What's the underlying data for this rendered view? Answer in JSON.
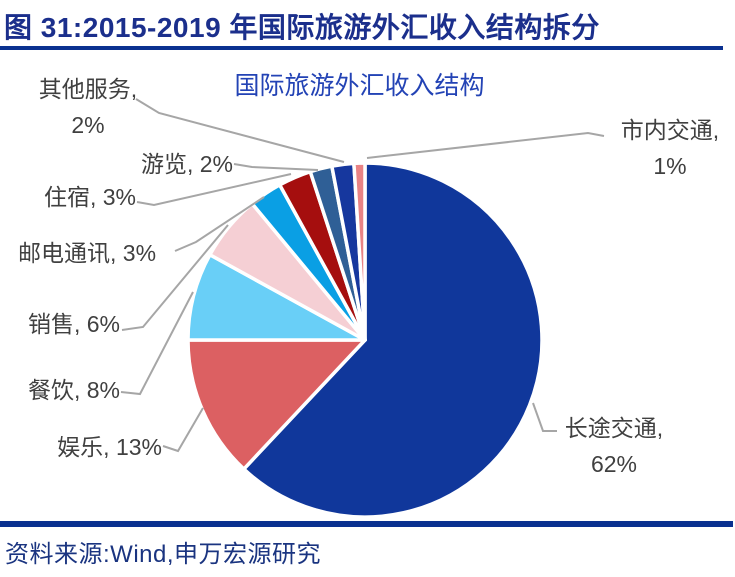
{
  "header": {
    "figure_title": "图 31:2015-2019 年国际旅游外汇收入结构拆分"
  },
  "chart_data": {
    "type": "pie",
    "title": "国际旅游外汇收入结构",
    "unit": "%",
    "direction": "clockwise",
    "start_angle_deg": 0,
    "legend_position": "none (data labels with leader lines)",
    "categories": [
      "长途交通",
      "娱乐",
      "餐饮",
      "销售",
      "邮电通讯",
      "住宿",
      "游览",
      "其他服务",
      "市内交通"
    ],
    "values": [
      62,
      13,
      8,
      6,
      3,
      3,
      2,
      2,
      1
    ],
    "colors": [
      "#10379B",
      "#DC6062",
      "#69CFF7",
      "#F5CFD4",
      "#0A9FE4",
      "#A50E0E",
      "#2F5F96",
      "#16379E",
      "#E98385"
    ],
    "labels": [
      {
        "lines": [
          "长途交通,",
          "62%"
        ]
      },
      {
        "lines": [
          "娱乐, 13%"
        ]
      },
      {
        "lines": [
          "餐饮, 8%"
        ]
      },
      {
        "lines": [
          "销售, 6%"
        ]
      },
      {
        "lines": [
          "邮电通讯, 3%"
        ]
      },
      {
        "lines": [
          "住宿, 3%"
        ]
      },
      {
        "lines": [
          "游览, 2%"
        ]
      },
      {
        "lines": [
          "其他服务,",
          "2%"
        ]
      },
      {
        "lines": [
          "市内交通,",
          "1%"
        ]
      }
    ]
  },
  "footer": {
    "source": "资料来源:Wind,申万宏源研究"
  },
  "colors": {
    "figure_title_blue": "#1B2F8C",
    "chart_title_blue": "#2343B5",
    "rule_blue": "#0A3190",
    "label_gray": "#404040",
    "leader_line_gray": "#A6A6A6",
    "slice_border": "#FFFFFF"
  }
}
